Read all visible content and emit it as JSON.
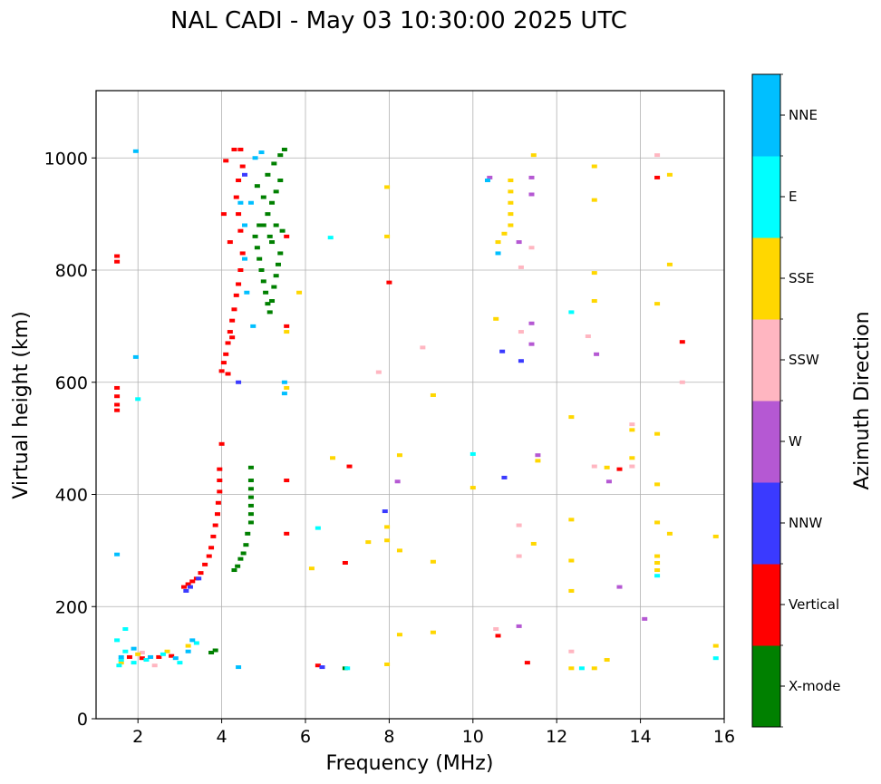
{
  "chart_data": {
    "type": "scatter",
    "title": "NAL CADI - May 03 10:30:00 2025 UTC",
    "xlabel": "Frequency (MHz)",
    "ylabel": "Virtual height (km)",
    "xlim": [
      1.0,
      16.0
    ],
    "ylim": [
      0,
      1120
    ],
    "xticks": [
      2,
      4,
      6,
      8,
      10,
      12,
      14,
      16
    ],
    "yticks": [
      0,
      200,
      400,
      600,
      800,
      1000
    ],
    "grid": true,
    "colorbar": {
      "label": "Azimuth Direction",
      "categories": [
        {
          "name": "X-mode",
          "color": "#008000"
        },
        {
          "name": "Vertical",
          "color": "#ff0000"
        },
        {
          "name": "NNW",
          "color": "#3a3aff"
        },
        {
          "name": "W",
          "color": "#b558d3"
        },
        {
          "name": "SSW",
          "color": "#ffb6c1"
        },
        {
          "name": "SSE",
          "color": "#ffd700"
        },
        {
          "name": "E",
          "color": "#00ffff"
        },
        {
          "name": "NNE",
          "color": "#00bfff"
        }
      ]
    },
    "series": [
      {
        "name": "X-mode",
        "points": [
          [
            3.75,
            118
          ],
          [
            3.85,
            122
          ],
          [
            4.3,
            265
          ],
          [
            4.38,
            272
          ],
          [
            4.45,
            285
          ],
          [
            4.52,
            295
          ],
          [
            4.58,
            310
          ],
          [
            4.62,
            330
          ],
          [
            4.7,
            350
          ],
          [
            4.7,
            365
          ],
          [
            4.7,
            380
          ],
          [
            4.7,
            395
          ],
          [
            4.7,
            410
          ],
          [
            4.7,
            425
          ],
          [
            4.7,
            448
          ],
          [
            4.8,
            860
          ],
          [
            4.85,
            840
          ],
          [
            4.9,
            820
          ],
          [
            4.95,
            800
          ],
          [
            5.0,
            780
          ],
          [
            5.05,
            760
          ],
          [
            5.1,
            740
          ],
          [
            5.15,
            725
          ],
          [
            5.2,
            745
          ],
          [
            5.25,
            770
          ],
          [
            5.3,
            790
          ],
          [
            5.35,
            810
          ],
          [
            5.4,
            830
          ],
          [
            5.0,
            880
          ],
          [
            5.1,
            900
          ],
          [
            5.2,
            920
          ],
          [
            5.3,
            940
          ],
          [
            5.4,
            960
          ],
          [
            5.1,
            970
          ],
          [
            5.25,
            990
          ],
          [
            5.4,
            1005
          ],
          [
            5.5,
            1015
          ],
          [
            4.85,
            950
          ],
          [
            5.0,
            930
          ],
          [
            5.15,
            860
          ],
          [
            5.3,
            880
          ],
          [
            5.45,
            870
          ],
          [
            4.9,
            880
          ],
          [
            5.2,
            850
          ],
          [
            6.95,
            90
          ]
        ]
      },
      {
        "name": "Vertical",
        "points": [
          [
            1.5,
            815
          ],
          [
            1.5,
            825
          ],
          [
            1.5,
            550
          ],
          [
            1.5,
            560
          ],
          [
            1.5,
            575
          ],
          [
            1.5,
            590
          ],
          [
            1.8,
            110
          ],
          [
            2.1,
            108
          ],
          [
            2.5,
            110
          ],
          [
            2.8,
            112
          ],
          [
            3.1,
            235
          ],
          [
            3.2,
            240
          ],
          [
            3.3,
            245
          ],
          [
            3.4,
            250
          ],
          [
            3.5,
            260
          ],
          [
            3.6,
            275
          ],
          [
            3.7,
            290
          ],
          [
            3.75,
            305
          ],
          [
            3.8,
            325
          ],
          [
            3.85,
            345
          ],
          [
            3.9,
            365
          ],
          [
            3.92,
            385
          ],
          [
            3.95,
            405
          ],
          [
            3.95,
            425
          ],
          [
            3.95,
            445
          ],
          [
            4.0,
            490
          ],
          [
            4.0,
            620
          ],
          [
            4.05,
            635
          ],
          [
            4.1,
            650
          ],
          [
            4.15,
            670
          ],
          [
            4.2,
            690
          ],
          [
            4.25,
            710
          ],
          [
            4.3,
            730
          ],
          [
            4.35,
            755
          ],
          [
            4.4,
            775
          ],
          [
            4.45,
            800
          ],
          [
            4.5,
            830
          ],
          [
            4.45,
            870
          ],
          [
            4.4,
            900
          ],
          [
            4.35,
            930
          ],
          [
            4.4,
            960
          ],
          [
            4.5,
            985
          ],
          [
            4.1,
            995
          ],
          [
            4.3,
            1015
          ],
          [
            4.45,
            1015
          ],
          [
            4.05,
            900
          ],
          [
            4.2,
            850
          ],
          [
            4.25,
            680
          ],
          [
            4.15,
            615
          ],
          [
            5.55,
            425
          ],
          [
            5.55,
            330
          ],
          [
            5.55,
            700
          ],
          [
            5.55,
            860
          ],
          [
            6.3,
            95
          ],
          [
            6.95,
            278
          ],
          [
            7.05,
            450
          ],
          [
            8.0,
            778
          ],
          [
            10.6,
            148
          ],
          [
            11.3,
            100
          ],
          [
            13.5,
            445
          ],
          [
            14.4,
            965
          ],
          [
            15.0,
            672
          ]
        ]
      },
      {
        "name": "NNW",
        "points": [
          [
            3.15,
            228
          ],
          [
            3.25,
            235
          ],
          [
            3.45,
            250
          ],
          [
            4.4,
            600
          ],
          [
            4.55,
            970
          ],
          [
            6.4,
            92
          ],
          [
            7.9,
            370
          ],
          [
            10.7,
            655
          ],
          [
            10.75,
            430
          ],
          [
            11.15,
            638
          ]
        ]
      },
      {
        "name": "W",
        "points": [
          [
            8.2,
            423
          ],
          [
            10.4,
            965
          ],
          [
            11.1,
            850
          ],
          [
            11.4,
            965
          ],
          [
            11.4,
            935
          ],
          [
            11.4,
            705
          ],
          [
            11.4,
            668
          ],
          [
            11.55,
            470
          ],
          [
            11.1,
            165
          ],
          [
            12.95,
            650
          ],
          [
            13.25,
            423
          ],
          [
            13.5,
            235
          ],
          [
            14.1,
            178
          ]
        ]
      },
      {
        "name": "SSW",
        "points": [
          [
            2.1,
            118
          ],
          [
            2.4,
            95
          ],
          [
            7.75,
            618
          ],
          [
            8.8,
            662
          ],
          [
            10.55,
            160
          ],
          [
            11.1,
            345
          ],
          [
            11.1,
            290
          ],
          [
            11.15,
            805
          ],
          [
            11.4,
            840
          ],
          [
            11.15,
            690
          ],
          [
            12.35,
            120
          ],
          [
            12.75,
            682
          ],
          [
            12.9,
            450
          ],
          [
            13.8,
            525
          ],
          [
            13.8,
            450
          ],
          [
            14.4,
            1005
          ],
          [
            15.0,
            600
          ]
        ]
      },
      {
        "name": "SSE",
        "points": [
          [
            1.6,
            100
          ],
          [
            2.0,
            115
          ],
          [
            2.7,
            120
          ],
          [
            3.2,
            130
          ],
          [
            5.55,
            690
          ],
          [
            5.55,
            590
          ],
          [
            5.85,
            760
          ],
          [
            6.15,
            268
          ],
          [
            6.65,
            465
          ],
          [
            7.5,
            315
          ],
          [
            7.95,
            948
          ],
          [
            7.95,
            860
          ],
          [
            7.95,
            342
          ],
          [
            7.95,
            318
          ],
          [
            7.95,
            97
          ],
          [
            8.25,
            470
          ],
          [
            8.25,
            300
          ],
          [
            8.25,
            150
          ],
          [
            9.05,
            577
          ],
          [
            9.05,
            280
          ],
          [
            9.05,
            154
          ],
          [
            10.0,
            412
          ],
          [
            10.55,
            713
          ],
          [
            10.6,
            850
          ],
          [
            10.75,
            865
          ],
          [
            10.9,
            960
          ],
          [
            10.9,
            940
          ],
          [
            10.9,
            920
          ],
          [
            10.9,
            900
          ],
          [
            10.9,
            880
          ],
          [
            11.45,
            1005
          ],
          [
            11.45,
            312
          ],
          [
            11.55,
            460
          ],
          [
            12.35,
            538
          ],
          [
            12.35,
            355
          ],
          [
            12.35,
            282
          ],
          [
            12.35,
            228
          ],
          [
            12.35,
            90
          ],
          [
            12.9,
            985
          ],
          [
            12.9,
            925
          ],
          [
            12.9,
            795
          ],
          [
            12.9,
            745
          ],
          [
            12.9,
            90
          ],
          [
            13.2,
            448
          ],
          [
            13.2,
            105
          ],
          [
            13.8,
            515
          ],
          [
            13.8,
            465
          ],
          [
            14.4,
            740
          ],
          [
            14.4,
            508
          ],
          [
            14.4,
            418
          ],
          [
            14.4,
            350
          ],
          [
            14.4,
            290
          ],
          [
            14.4,
            278
          ],
          [
            14.4,
            265
          ],
          [
            14.7,
            970
          ],
          [
            14.7,
            810
          ],
          [
            14.7,
            330
          ],
          [
            15.8,
            325
          ],
          [
            15.8,
            130
          ]
        ]
      },
      {
        "name": "E",
        "points": [
          [
            1.55,
            95
          ],
          [
            1.6,
            105
          ],
          [
            1.7,
            120
          ],
          [
            1.9,
            100
          ],
          [
            2.2,
            105
          ],
          [
            2.6,
            115
          ],
          [
            3.0,
            100
          ],
          [
            3.4,
            135
          ],
          [
            2.0,
            570
          ],
          [
            6.3,
            340
          ],
          [
            6.6,
            858
          ],
          [
            7.0,
            90
          ],
          [
            10.0,
            472
          ],
          [
            12.35,
            725
          ],
          [
            12.6,
            90
          ],
          [
            14.4,
            255
          ],
          [
            15.8,
            108
          ],
          [
            1.5,
            140
          ],
          [
            1.7,
            160
          ]
        ]
      },
      {
        "name": "NNE",
        "points": [
          [
            1.5,
            293
          ],
          [
            1.6,
            110
          ],
          [
            1.9,
            125
          ],
          [
            2.3,
            110
          ],
          [
            2.9,
            108
          ],
          [
            3.3,
            140
          ],
          [
            4.4,
            92
          ],
          [
            4.45,
            920
          ],
          [
            4.55,
            880
          ],
          [
            4.55,
            820
          ],
          [
            4.8,
            1000
          ],
          [
            4.95,
            1010
          ],
          [
            5.5,
            600
          ],
          [
            5.5,
            580
          ],
          [
            10.6,
            830
          ],
          [
            10.35,
            960
          ],
          [
            1.95,
            1012
          ],
          [
            1.95,
            645
          ],
          [
            3.2,
            120
          ],
          [
            4.6,
            760
          ],
          [
            4.7,
            920
          ],
          [
            4.75,
            700
          ]
        ]
      }
    ]
  }
}
